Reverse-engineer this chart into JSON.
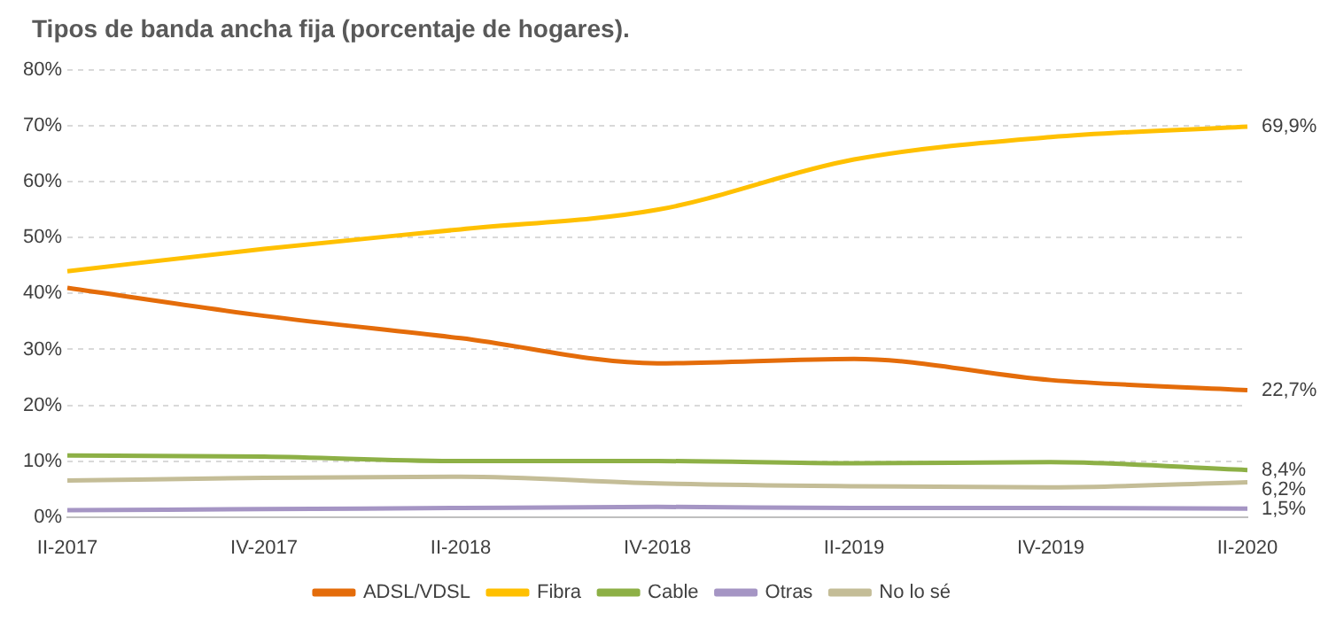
{
  "chart_data": {
    "type": "line",
    "title": "Tipos de banda ancha fija (porcentaje de hogares).",
    "categories": [
      "II-2017",
      "IV-2017",
      "II-2018",
      "IV-2018",
      "II-2019",
      "IV-2019",
      "II-2020"
    ],
    "series": [
      {
        "name": "ADSL/VDSL",
        "color": "#e46c0a",
        "values": [
          41,
          36,
          32,
          27.5,
          28.3,
          24.5,
          22.7
        ],
        "value_labels": [
          null,
          null,
          null,
          null,
          null,
          null,
          "22,7%"
        ]
      },
      {
        "name": "Fibra",
        "color": "#ffc000",
        "values": [
          44,
          48,
          51.5,
          55,
          64,
          68,
          69.9
        ],
        "value_labels": [
          null,
          null,
          null,
          null,
          null,
          null,
          "69,9%"
        ]
      },
      {
        "name": "Cable",
        "color": "#8db046",
        "values": [
          11,
          10.8,
          10,
          10,
          9.6,
          9.8,
          8.4
        ],
        "value_labels": [
          null,
          null,
          null,
          null,
          null,
          null,
          "8,4%"
        ]
      },
      {
        "name": "Otras",
        "color": "#a595c4",
        "values": [
          1.2,
          1.4,
          1.6,
          1.8,
          1.6,
          1.6,
          1.5
        ],
        "value_labels": [
          null,
          null,
          null,
          null,
          null,
          null,
          "1,5%"
        ]
      },
      {
        "name": "No lo sé",
        "color": "#c4bd97",
        "values": [
          6.5,
          7,
          7.2,
          6,
          5.5,
          5.3,
          6.2
        ],
        "value_labels": [
          null,
          null,
          null,
          null,
          null,
          null,
          "6,2%"
        ]
      }
    ],
    "ylim": [
      0,
      80
    ],
    "yticks": [
      {
        "value": 0,
        "label": "0%"
      },
      {
        "value": 10,
        "label": "10%"
      },
      {
        "value": 20,
        "label": "20%"
      },
      {
        "value": 30,
        "label": "30%"
      },
      {
        "value": 40,
        "label": "40%"
      },
      {
        "value": 50,
        "label": "50%"
      },
      {
        "value": 60,
        "label": "60%"
      },
      {
        "value": 70,
        "label": "70%"
      },
      {
        "value": 80,
        "label": "80%"
      }
    ],
    "grid": "y",
    "legend": "bottom",
    "marker": "none",
    "line_style": "solid"
  }
}
